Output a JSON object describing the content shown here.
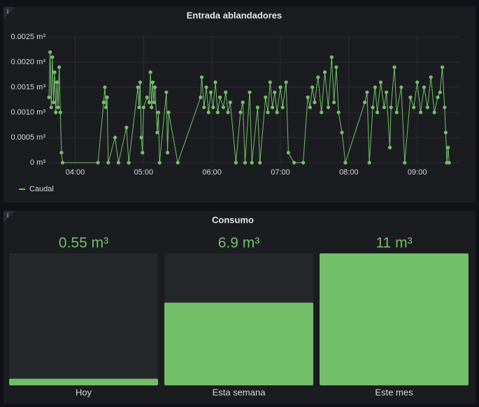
{
  "chart_data": [
    {
      "type": "line",
      "title": "Entrada ablandadores",
      "x": [
        "03:37",
        "03:38",
        "03:39",
        "03:40",
        "03:41",
        "03:42",
        "03:43",
        "03:44",
        "03:45",
        "03:46",
        "03:47",
        "03:48",
        "03:49",
        "04:20",
        "04:25",
        "04:26",
        "04:27",
        "04:28",
        "04:29",
        "04:35",
        "04:38",
        "04:45",
        "04:47",
        "04:55",
        "04:56",
        "04:57",
        "04:58",
        "04:59",
        "05:00",
        "05:03",
        "05:05",
        "05:06",
        "05:07",
        "05:08",
        "05:09",
        "05:10",
        "05:12",
        "05:13",
        "05:14",
        "05:20",
        "05:21",
        "05:22",
        "05:30",
        "05:50",
        "05:51",
        "05:53",
        "05:55",
        "05:57",
        "05:59",
        "06:01",
        "06:03",
        "06:05",
        "06:07",
        "06:10",
        "06:12",
        "06:14",
        "06:16",
        "06:21",
        "06:25",
        "06:27",
        "06:29",
        "06:33",
        "06:35",
        "06:40",
        "06:42",
        "06:47",
        "06:49",
        "06:51",
        "06:53",
        "06:55",
        "06:57",
        "07:00",
        "07:02",
        "07:05",
        "07:07",
        "07:12",
        "07:20",
        "07:24",
        "07:26",
        "07:28",
        "07:30",
        "07:33",
        "07:36",
        "07:39",
        "07:42",
        "07:45",
        "07:47",
        "07:49",
        "07:51",
        "07:54",
        "07:57",
        "08:14",
        "08:16",
        "08:18",
        "08:21",
        "08:23",
        "08:25",
        "08:28",
        "08:31",
        "08:33",
        "08:36",
        "08:37",
        "08:40",
        "08:42",
        "08:46",
        "08:49",
        "08:54",
        "08:57",
        "09:00",
        "09:03",
        "09:06",
        "09:09",
        "09:12",
        "09:15",
        "09:18",
        "09:20",
        "09:22",
        "09:24",
        "09:25",
        "09:26",
        "09:27",
        "09:28"
      ],
      "series": [
        {
          "name": "Caudal",
          "color": "#73bf69",
          "values": [
            0.0013,
            0.0022,
            0.0011,
            0.0021,
            0.0012,
            0.0018,
            0.001,
            0.0016,
            0.0011,
            0.0019,
            0.001,
            0.0002,
            0,
            0,
            0.0012,
            0.0015,
            0.0011,
            0.0013,
            0,
            0.0005,
            0,
            0.0007,
            0,
            0.0015,
            0.0011,
            0.0016,
            0.0005,
            0.0002,
            0.0011,
            0.0013,
            0.0012,
            0.0018,
            0.0011,
            0.0016,
            0.0012,
            0.0015,
            0.0006,
            0.001,
            0,
            0.0014,
            0.0002,
            0.001,
            0,
            0.0013,
            0.0017,
            0.0011,
            0.0015,
            0.001,
            0.0014,
            0.0011,
            0.0016,
            0.001,
            0.0013,
            0.0011,
            0.0014,
            0.001,
            0.0012,
            0,
            0.001,
            0.0012,
            0,
            0.0014,
            0,
            0.0011,
            0,
            0.0013,
            0.001,
            0.0016,
            0.0011,
            0.0014,
            0.001,
            0.0015,
            0.0011,
            0.0016,
            0.0002,
            0,
            0,
            0.0013,
            0.0011,
            0.0015,
            0.0012,
            0.0017,
            0.001,
            0.0018,
            0.0011,
            0.0021,
            0.0012,
            0.0019,
            0.001,
            0.0006,
            0,
            0.0012,
            0.0014,
            0,
            0.0011,
            0.0015,
            0.001,
            0.0016,
            0.0011,
            0.0014,
            0.0003,
            0.0011,
            0.0019,
            0.001,
            0.0015,
            0,
            0.0013,
            0.0011,
            0.0016,
            0.001,
            0.0015,
            0.0011,
            0.0017,
            0.001,
            0.0013,
            0.0014,
            0.0019,
            0.0011,
            0.0006,
            0,
            0.0003,
            0
          ]
        }
      ],
      "xlim": [
        "03:37",
        "09:37"
      ],
      "xticks": [
        "04:00",
        "05:00",
        "06:00",
        "07:00",
        "08:00",
        "09:00"
      ],
      "ylim": [
        0,
        0.0025
      ],
      "yticks": [
        {
          "value": 0,
          "label": "0 m³"
        },
        {
          "value": 0.0005,
          "label": "0.0005 m³"
        },
        {
          "value": 0.001,
          "label": "0.0010 m³"
        },
        {
          "value": 0.0015,
          "label": "0.0015 m³"
        },
        {
          "value": 0.002,
          "label": "0.0020 m³"
        },
        {
          "value": 0.0025,
          "label": "0.0025 m³"
        }
      ],
      "grid": true,
      "legend": "bottom-left"
    },
    {
      "type": "bar",
      "title": "Consumo",
      "categories": [
        "Hoy",
        "Esta semana",
        "Este mes"
      ],
      "values": [
        0.55,
        6.9,
        11
      ],
      "value_labels": [
        "0.55 m³",
        "6.9 m³",
        "11 m³"
      ],
      "color": "#73bf69",
      "ylim": [
        0,
        11
      ]
    }
  ]
}
